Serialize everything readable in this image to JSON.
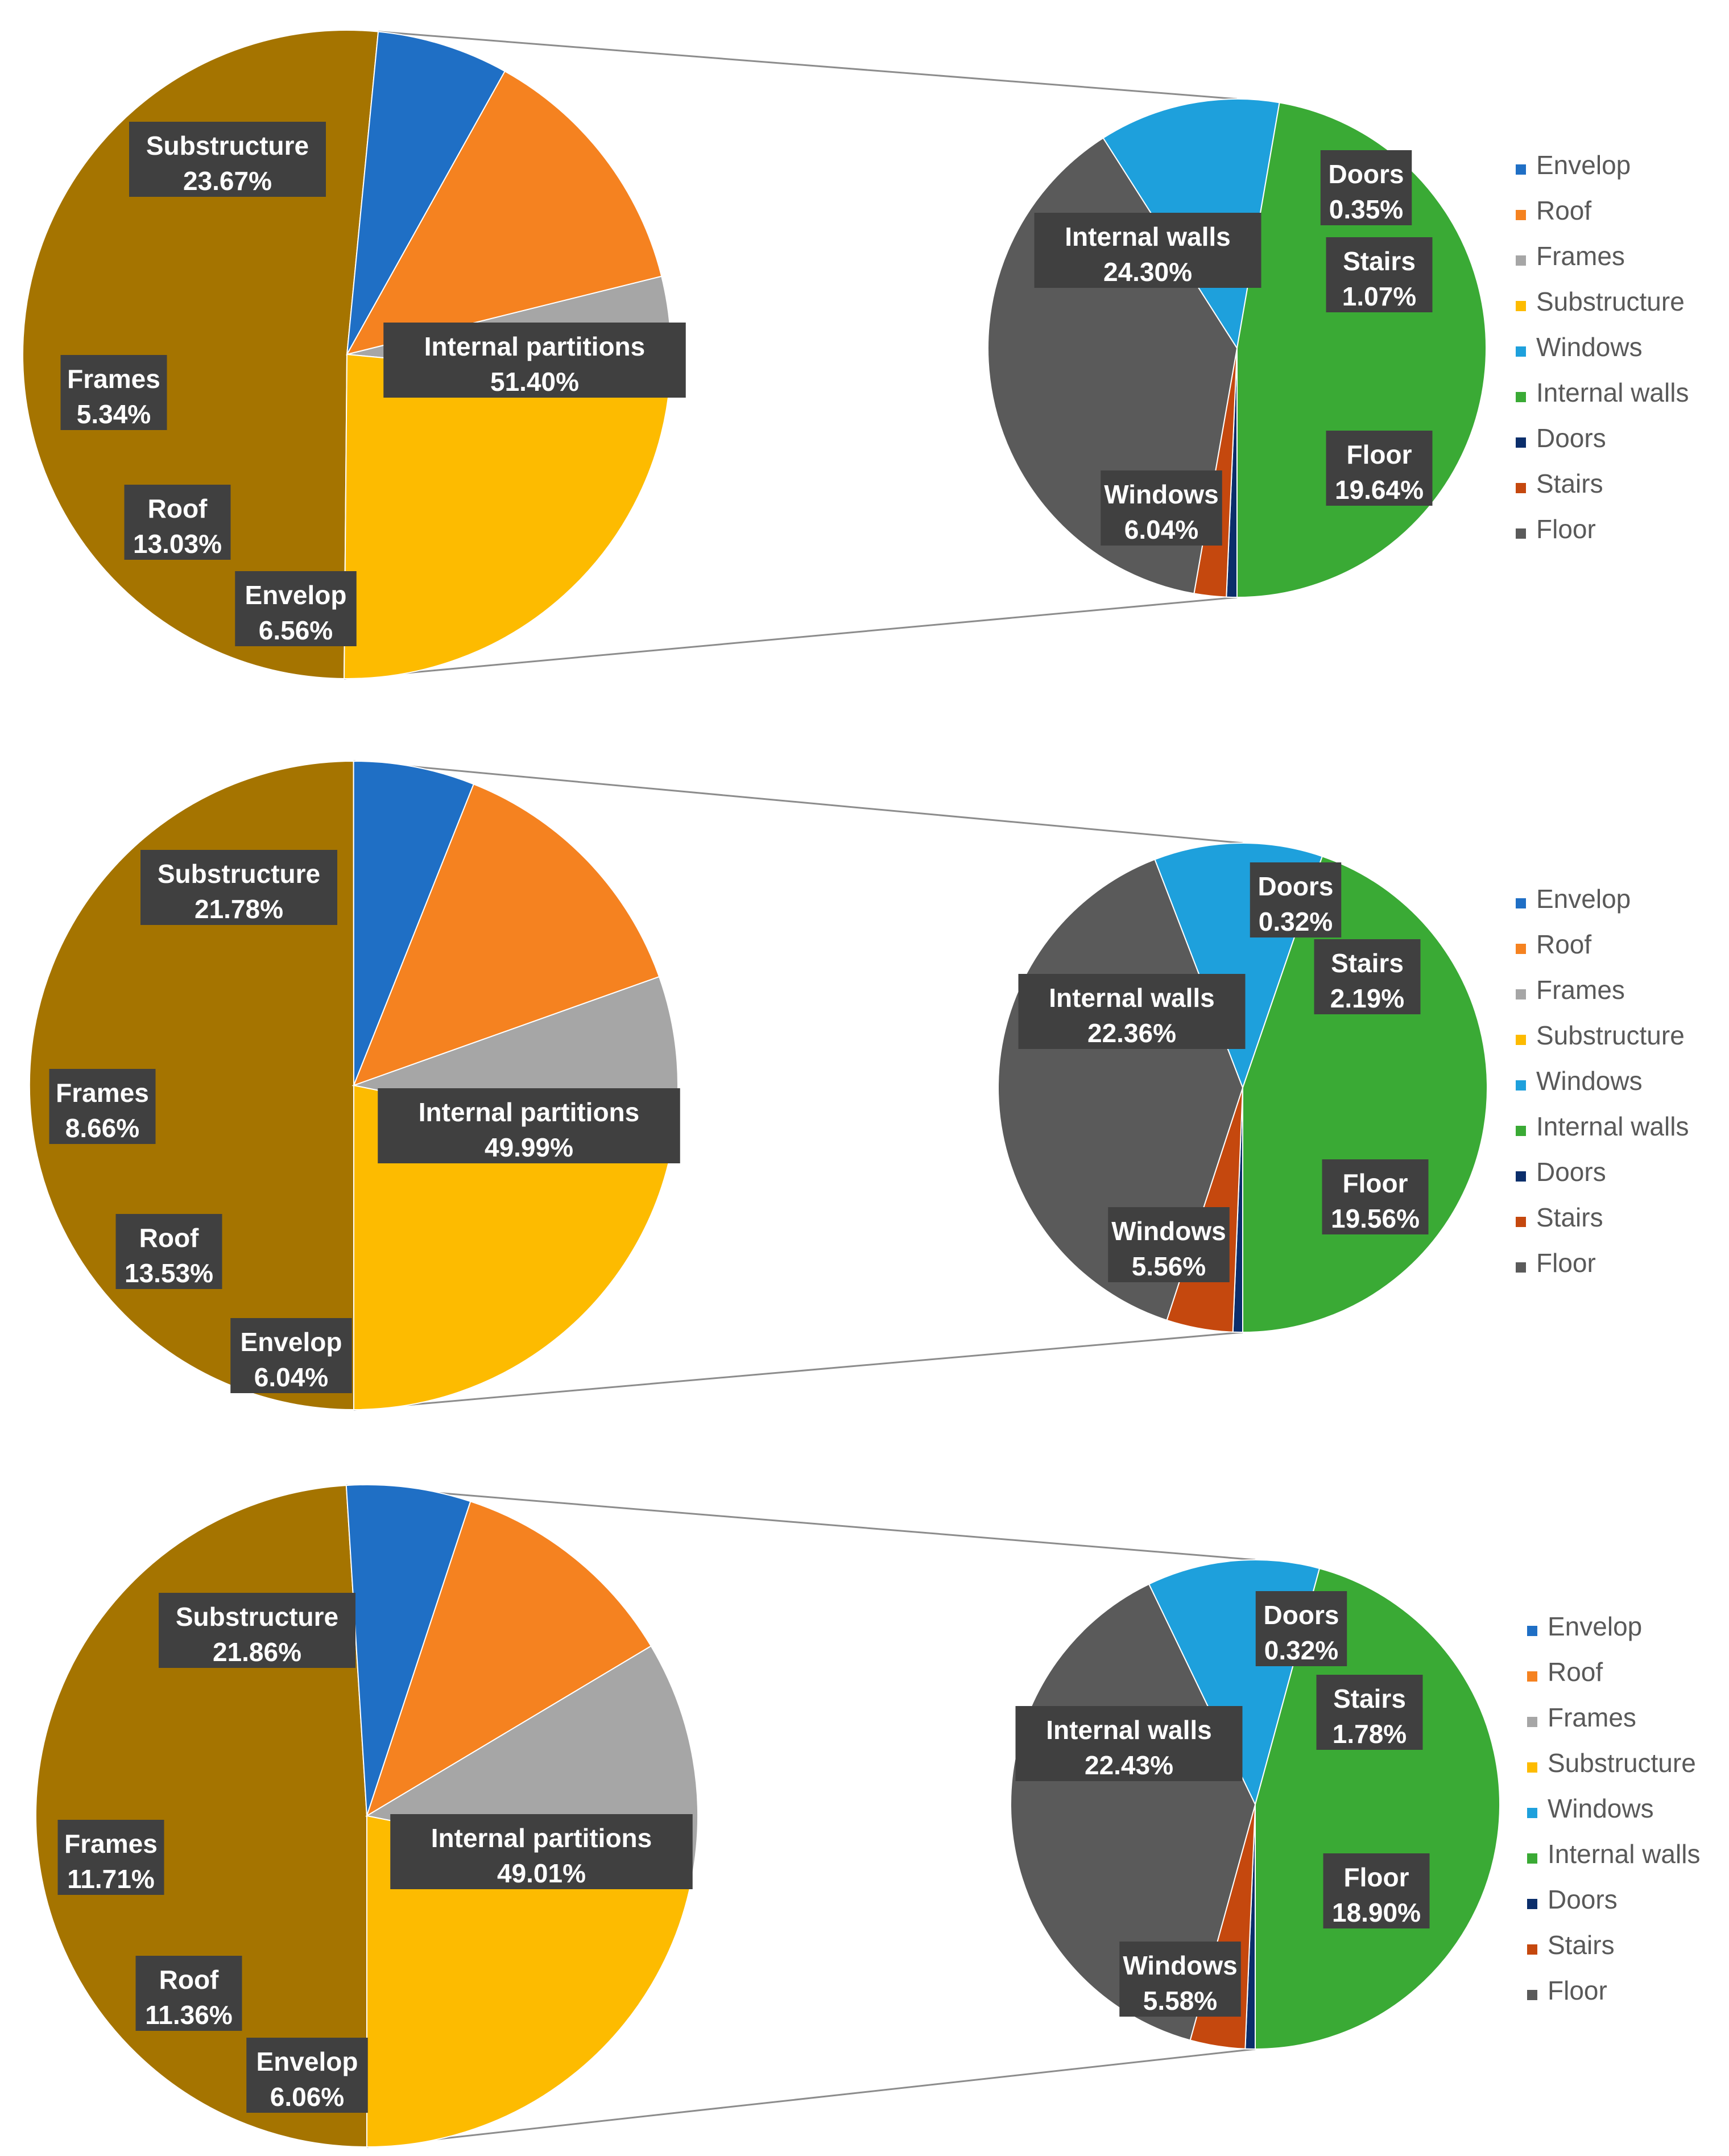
{
  "colors": {
    "Envelop": "#1f6fc5",
    "Roof": "#f58220",
    "Frames": "#a6a6a6",
    "Substructure": "#fdbb00",
    "Windows": "#1ea0dc",
    "Internal walls": "#3aaa35",
    "Doors": "#0b2e6b",
    "Stairs": "#c5480e",
    "Floor": "#5a5a5a",
    "Internal partitions": "#a57400"
  },
  "legend": [
    "Envelop",
    "Roof",
    "Frames",
    "Substructure",
    "Windows",
    "Internal walls",
    "Doors",
    "Stairs",
    "Floor"
  ],
  "chart_data": [
    {
      "type": "pie",
      "main": {
        "slices": [
          {
            "name": "Internal partitions",
            "label": "Internal partitions",
            "value": 51.4,
            "text": "51.40%"
          },
          {
            "name": "Envelop",
            "label": "Envelop",
            "value": 6.56,
            "text": "6.56%"
          },
          {
            "name": "Roof",
            "label": "Roof",
            "value": 13.03,
            "text": "13.03%"
          },
          {
            "name": "Frames",
            "label": "Frames",
            "value": 5.34,
            "text": "5.34%"
          },
          {
            "name": "Substructure",
            "label": "Substructure",
            "value": 23.67,
            "text": "23.67%"
          }
        ]
      },
      "detail": {
        "slices": [
          {
            "name": "Doors",
            "label": "Doors",
            "value": 0.35,
            "text": "0.35%"
          },
          {
            "name": "Stairs",
            "label": "Stairs",
            "value": 1.07,
            "text": "1.07%"
          },
          {
            "name": "Floor",
            "label": "Floor",
            "value": 19.64,
            "text": "19.64%"
          },
          {
            "name": "Windows",
            "label": "Windows",
            "value": 6.04,
            "text": "6.04%"
          },
          {
            "name": "Internal walls",
            "label": "Internal walls",
            "value": 24.3,
            "text": "24.30%"
          }
        ]
      }
    },
    {
      "type": "pie",
      "main": {
        "slices": [
          {
            "name": "Internal partitions",
            "label": "Internal partitions",
            "value": 49.99,
            "text": "49.99%"
          },
          {
            "name": "Envelop",
            "label": "Envelop",
            "value": 6.04,
            "text": "6.04%"
          },
          {
            "name": "Roof",
            "label": "Roof",
            "value": 13.53,
            "text": "13.53%"
          },
          {
            "name": "Frames",
            "label": "Frames",
            "value": 8.66,
            "text": "8.66%"
          },
          {
            "name": "Substructure",
            "label": "Substructure",
            "value": 21.78,
            "text": "21.78%"
          }
        ]
      },
      "detail": {
        "slices": [
          {
            "name": "Doors",
            "label": "Doors",
            "value": 0.32,
            "text": "0.32%"
          },
          {
            "name": "Stairs",
            "label": "Stairs",
            "value": 2.19,
            "text": "2.19%"
          },
          {
            "name": "Floor",
            "label": "Floor",
            "value": 19.56,
            "text": "19.56%"
          },
          {
            "name": "Windows",
            "label": "Windows",
            "value": 5.56,
            "text": "5.56%"
          },
          {
            "name": "Internal walls",
            "label": "Internal walls",
            "value": 22.36,
            "text": "22.36%"
          }
        ]
      }
    },
    {
      "type": "pie",
      "main": {
        "slices": [
          {
            "name": "Internal partitions",
            "label": "Internal partitions",
            "value": 49.01,
            "text": "49.01%"
          },
          {
            "name": "Envelop",
            "label": "Envelop",
            "value": 6.06,
            "text": "6.06%"
          },
          {
            "name": "Roof",
            "label": "Roof",
            "value": 11.36,
            "text": "11.36%"
          },
          {
            "name": "Frames",
            "label": "Frames",
            "value": 11.71,
            "text": "11.71%"
          },
          {
            "name": "Substructure",
            "label": "Substructure",
            "value": 21.86,
            "text": "21.86%"
          }
        ]
      },
      "detail": {
        "slices": [
          {
            "name": "Doors",
            "label": "Doors",
            "value": 0.32,
            "text": "0.32%"
          },
          {
            "name": "Stairs",
            "label": "Stairs",
            "value": 1.78,
            "text": "1.78%"
          },
          {
            "name": "Floor",
            "label": "Floor",
            "value": 18.9,
            "text": "18.90%"
          },
          {
            "name": "Windows",
            "label": "Windows",
            "value": 5.58,
            "text": "5.58%"
          },
          {
            "name": "Internal walls",
            "label": "Internal walls",
            "value": 22.43,
            "text": "22.43%"
          }
        ]
      }
    }
  ]
}
